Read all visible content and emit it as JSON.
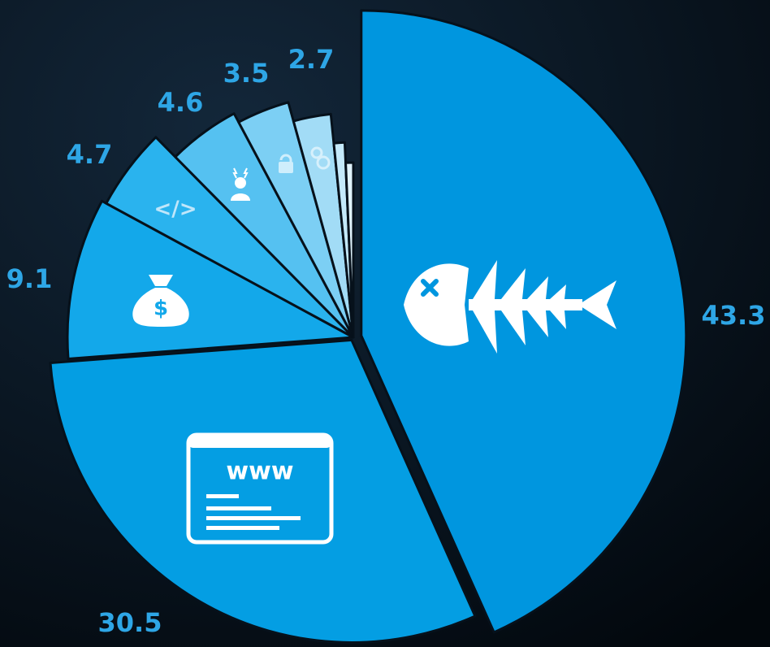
{
  "chart_data": {
    "type": "pie",
    "values": [
      43.3,
      30.5,
      9.1,
      4.7,
      4.6,
      3.5,
      2.7,
      0.9,
      0.7
    ],
    "value_labels": [
      "43.3",
      "30.5",
      "9.1",
      "4.7",
      "4.6",
      "3.5",
      "2.7",
      null,
      null
    ],
    "colors": [
      "#0096df",
      "#049ee3",
      "#13a8ea",
      "#2ab3ee",
      "#55c1f1",
      "#7ccff4",
      "#a2dcf6",
      "#c4e9fa",
      "#e0f3fc"
    ]
  }
}
